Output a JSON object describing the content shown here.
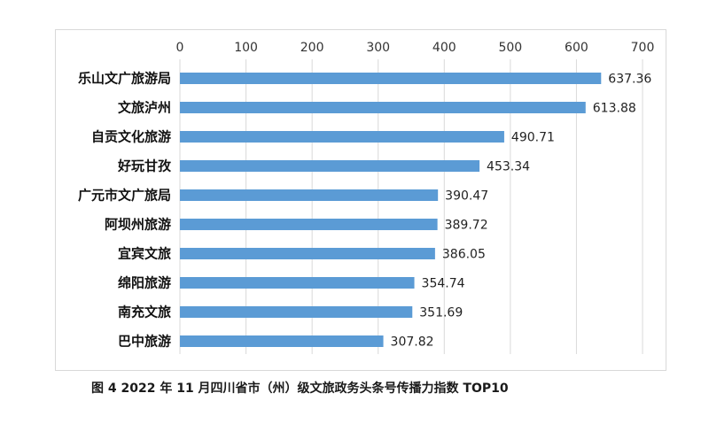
{
  "caption": "图 4  2022 年 11 月四川省市（州）级文旅政务头条号传播力指数 TOP10",
  "chart_data": {
    "type": "bar",
    "orientation": "horizontal",
    "categories": [
      "乐山文广旅游局",
      "文旅泸州",
      "自贡文化旅游",
      "好玩甘孜",
      "广元市文广旅局",
      "阿坝州旅游",
      "宜宾文旅",
      "绵阳旅游",
      "南充文旅",
      "巴中旅游"
    ],
    "values": [
      637.36,
      613.88,
      490.71,
      453.34,
      390.47,
      389.72,
      386.05,
      354.74,
      351.69,
      307.82
    ],
    "value_labels": [
      "637.36",
      "613.88",
      "490.71",
      "453.34",
      "390.47",
      "389.72",
      "386.05",
      "354.74",
      "351.69",
      "307.82"
    ],
    "xlim": [
      0,
      700
    ],
    "xticks": [
      0,
      100,
      200,
      300,
      400,
      500,
      600,
      700
    ],
    "xaxis_position": "top",
    "grid": true,
    "bar_color": "#5b9bd5",
    "grid_color": "#d9d9d9"
  }
}
